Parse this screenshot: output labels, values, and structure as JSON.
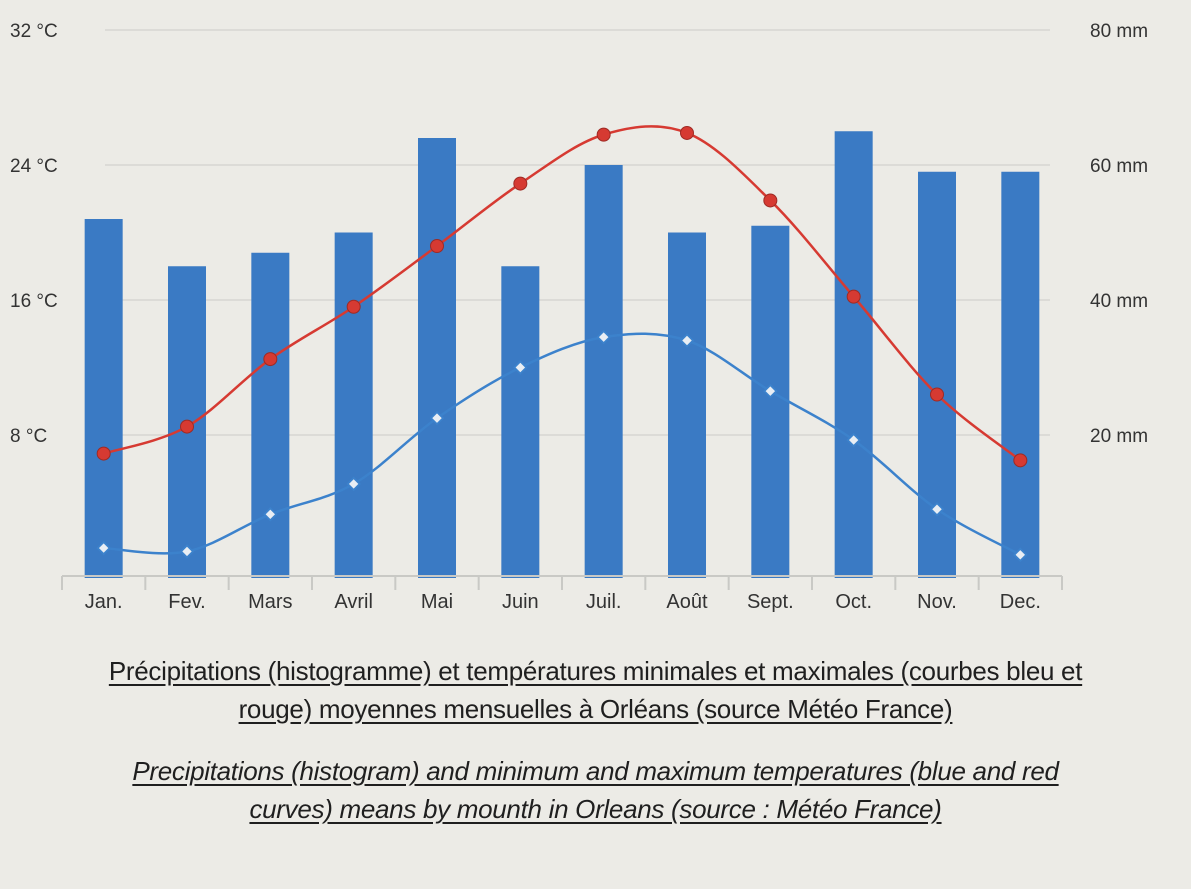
{
  "chart_data": {
    "type": "bar",
    "categories": [
      "Jan.",
      "Fev.",
      "Mars",
      "Avril",
      "Mai",
      "Juin",
      "Juil.",
      "Août",
      "Sept.",
      "Oct.",
      "Nov.",
      "Dec."
    ],
    "series": [
      {
        "kind": "bar",
        "axis": "right",
        "values": [
          52,
          45,
          47,
          50,
          64,
          45,
          60,
          50,
          51,
          65,
          59,
          59
        ]
      },
      {
        "kind": "line",
        "axis": "left",
        "color": "#d63a32",
        "values": [
          6.9,
          8.5,
          12.5,
          15.6,
          19.2,
          22.9,
          25.8,
          25.9,
          21.9,
          16.2,
          10.4,
          6.5
        ]
      },
      {
        "kind": "line",
        "axis": "left",
        "color": "#3c82cc",
        "values": [
          1.3,
          1.1,
          3.3,
          5.1,
          9.0,
          12.0,
          13.8,
          13.6,
          10.6,
          7.7,
          3.6,
          0.9
        ]
      }
    ],
    "left_axis": {
      "ticks": [
        "8 °C",
        "16 °C",
        "24 °C",
        "32 °C"
      ],
      "range": [
        0,
        32
      ]
    },
    "right_axis": {
      "ticks": [
        "20 mm",
        "40 mm",
        "60 mm",
        "80 mm"
      ],
      "range": [
        0,
        80
      ]
    },
    "grid": true,
    "bar_color": "#3a7ac4",
    "title": ""
  },
  "caption_fr": {
    "line1": "Précipitations (histogramme) et températures minimales et maximales (courbes bleu et",
    "line2": "rouge) moyennes mensuelles à Orléans (source Météo France)"
  },
  "caption_en": {
    "line1": "Precipitations (histogram) and minimum and maximum temperatures (blue and red",
    "line2": "curves) means by mounth in Orleans (source : Météo France)"
  }
}
